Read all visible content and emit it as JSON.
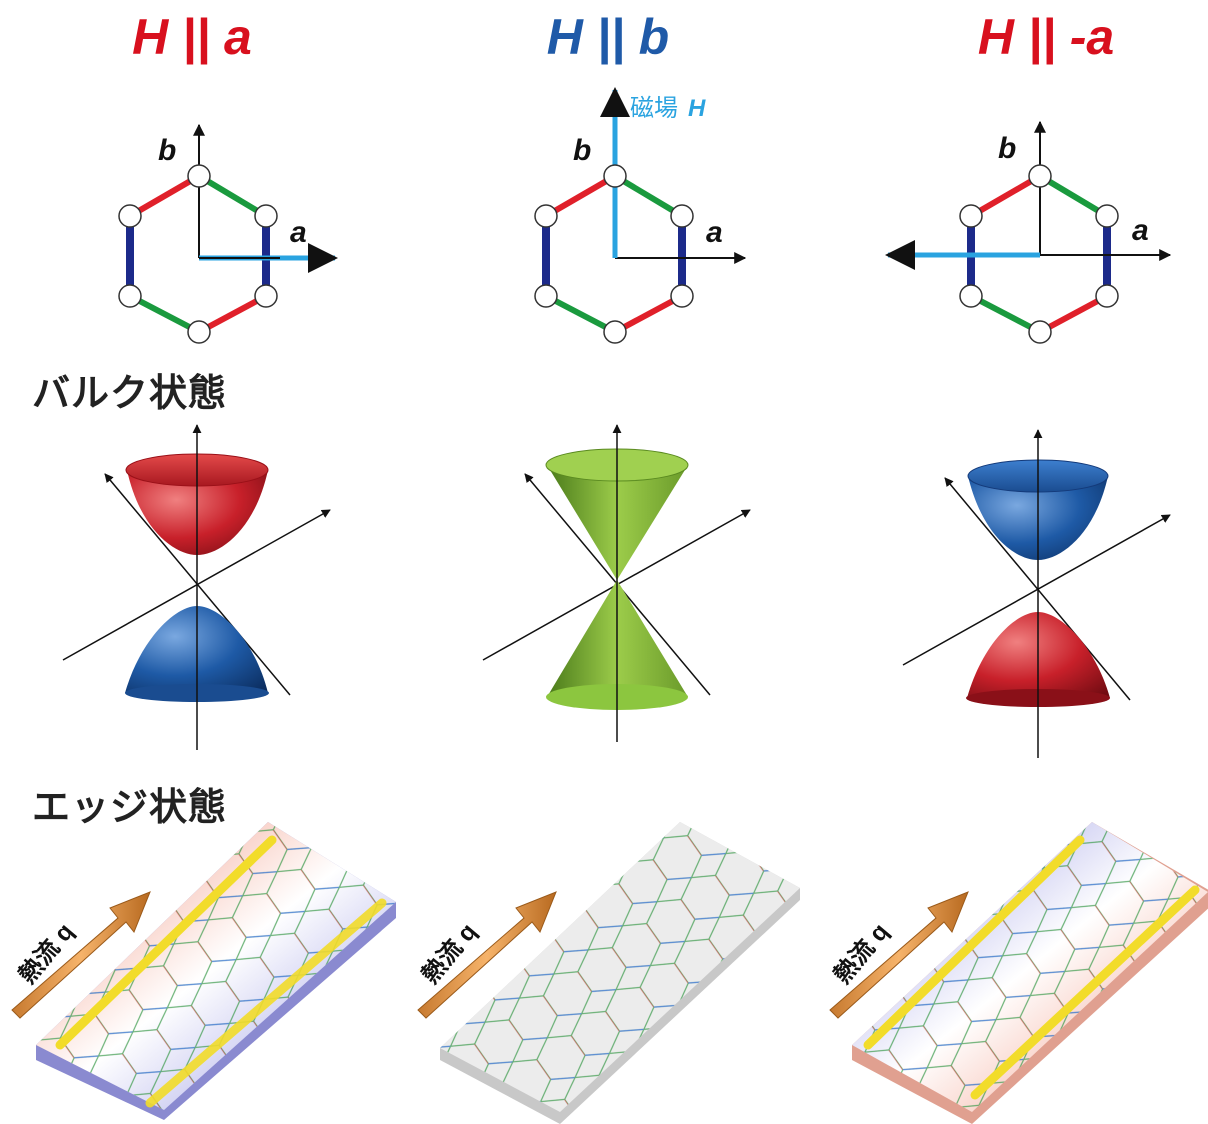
{
  "columns": [
    {
      "title": "H || a",
      "color": "#d8101e",
      "bulk_upper": "red",
      "bulk_lower": "blue",
      "edge_top": "red",
      "edge_bottom": "blue"
    },
    {
      "title": "H || b",
      "color": "#1f5aa8",
      "bulk_shape": "cone",
      "bulk_color": "#8cc63f",
      "edge": "none"
    },
    {
      "title": "H || -a",
      "color": "#d8101e",
      "bulk_upper": "blue",
      "bulk_lower": "red",
      "edge_top": "blue",
      "edge_bottom": "red"
    }
  ],
  "labels": {
    "axis_a": "a",
    "axis_b": "b",
    "field": "磁場",
    "field_symbol": "H",
    "bulk": "バルク状態",
    "edge": "エッジ状態",
    "heat": "熱流 q"
  },
  "colors": {
    "bond_x": "#e0202a",
    "bond_y": "#1a9a3e",
    "bond_z": "#1c2a8a",
    "field_arrow": "#2aa3e0",
    "heat_arrow": "#f0a050",
    "edge_current": "#f2dc2a"
  }
}
